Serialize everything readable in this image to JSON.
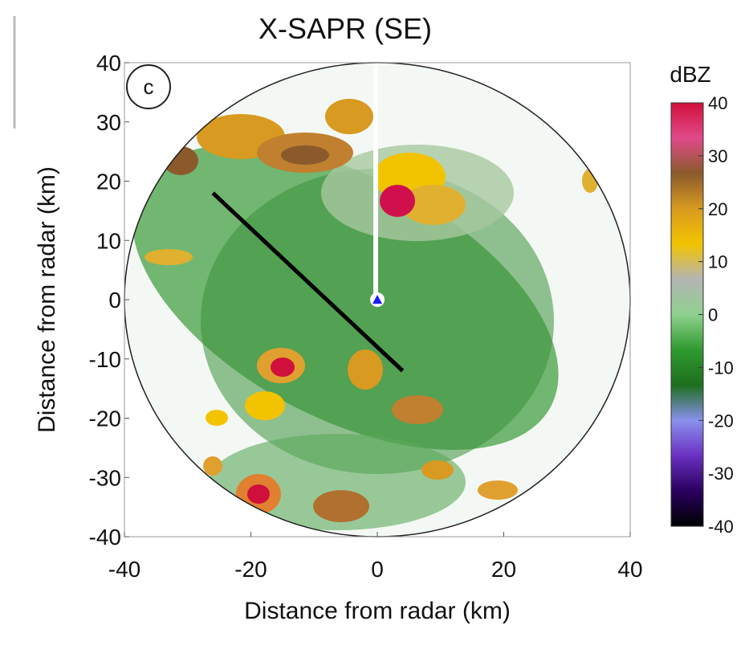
{
  "chart_data": {
    "type": "radar-ppi",
    "title": "X-SAPR (SE)",
    "panel_label": "c",
    "xlabel": "Distance from radar (km)",
    "ylabel": "Distance from radar (km)",
    "xlim": [
      -40,
      40
    ],
    "ylim": [
      -40,
      40
    ],
    "xticks": [
      -40,
      -20,
      0,
      20,
      40
    ],
    "yticks": [
      -40,
      -30,
      -20,
      -10,
      0,
      10,
      20,
      30,
      40
    ],
    "range_ring": 40,
    "radar": {
      "x": 0,
      "y": 0,
      "color": "#1a1aff"
    },
    "transect": {
      "x": [
        -26,
        4
      ],
      "y": [
        18,
        -12
      ],
      "color": "#000000"
    },
    "colorbar": {
      "label": "dBZ",
      "lim": [
        -40,
        40
      ],
      "ticks": [
        -40,
        -30,
        -20,
        -10,
        0,
        10,
        20,
        30,
        40
      ],
      "colors": [
        "#000000",
        "#2a0060",
        "#6a30c0",
        "#8a90ee",
        "#1e6e1e",
        "#2f9a2f",
        "#8fd08f",
        "#b4b4b4",
        "#f2c400",
        "#d89a20",
        "#8b5a2b",
        "#e04a8a",
        "#d0103c"
      ]
    }
  }
}
